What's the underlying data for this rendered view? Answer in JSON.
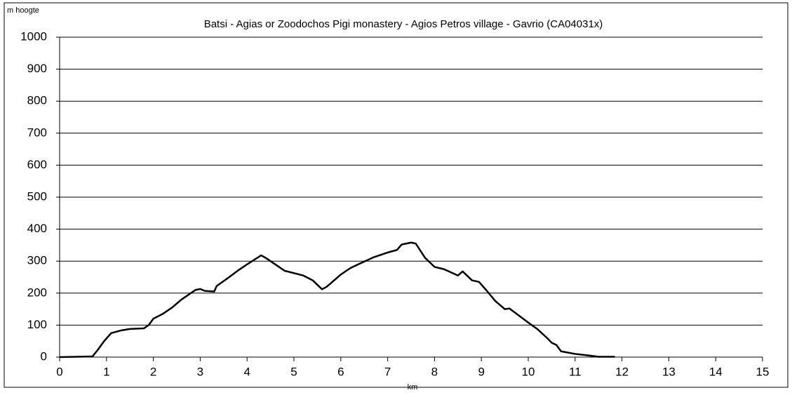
{
  "chart_data": {
    "type": "line",
    "title": "Batsi - Agias or Zoodochos Pigi monastery - Agios Petros village - Gavrio (CA04031x)",
    "y_label": "m hoogte",
    "x_label": "km",
    "x": [
      0,
      0.7,
      0.8,
      0.95,
      1.1,
      1.3,
      1.5,
      1.8,
      1.9,
      2.0,
      2.2,
      2.4,
      2.6,
      2.75,
      2.9,
      3.0,
      3.1,
      3.3,
      3.35,
      3.6,
      3.8,
      4.0,
      4.3,
      4.4,
      4.8,
      5.2,
      5.4,
      5.6,
      5.7,
      6.0,
      6.2,
      6.4,
      6.7,
      7.0,
      7.2,
      7.3,
      7.5,
      7.6,
      7.8,
      8.0,
      8.2,
      8.5,
      8.6,
      8.8,
      8.95,
      9.1,
      9.3,
      9.5,
      9.6,
      9.8,
      10.0,
      10.2,
      10.4,
      10.5,
      10.6,
      10.7,
      11.0,
      11.3,
      11.5,
      11.85
    ],
    "values": [
      0,
      2,
      20,
      50,
      75,
      83,
      88,
      90,
      100,
      120,
      135,
      155,
      180,
      195,
      210,
      213,
      207,
      205,
      222,
      248,
      270,
      290,
      318,
      310,
      270,
      255,
      240,
      212,
      220,
      258,
      278,
      292,
      312,
      327,
      335,
      352,
      358,
      355,
      310,
      282,
      275,
      255,
      268,
      240,
      235,
      210,
      175,
      150,
      152,
      130,
      108,
      87,
      60,
      45,
      38,
      18,
      10,
      5,
      1,
      1
    ],
    "color": "#000000",
    "xlim": [
      0,
      15
    ],
    "xticks": [
      0,
      1,
      2,
      3,
      4,
      5,
      6,
      7,
      8,
      9,
      10,
      11,
      12,
      13,
      14,
      15
    ],
    "ylim": [
      0,
      1000
    ],
    "yticks": [
      0,
      100,
      200,
      300,
      400,
      500,
      600,
      700,
      800,
      900,
      1000
    ],
    "grid": true
  }
}
